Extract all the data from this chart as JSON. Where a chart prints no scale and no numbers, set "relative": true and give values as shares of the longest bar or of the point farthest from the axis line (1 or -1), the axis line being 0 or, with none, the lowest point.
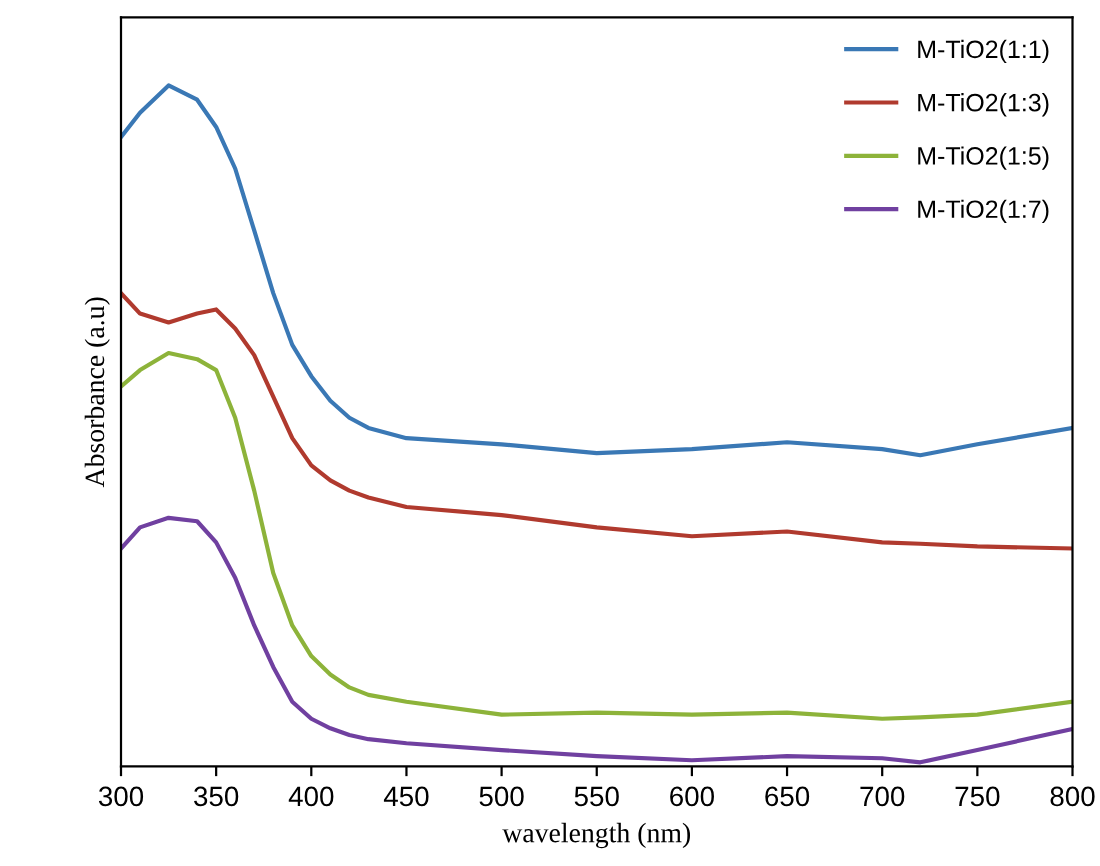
{
  "chart_data": {
    "type": "line",
    "xlabel": "wavelength (nm)",
    "ylabel": "Absorbance (a.u)",
    "relative": true,
    "legend": "top right",
    "grid": false,
    "marker": "none",
    "line_style": "solid",
    "x": [
      300,
      310,
      325,
      340,
      350,
      360,
      370,
      380,
      390,
      400,
      410,
      420,
      430,
      450,
      500,
      550,
      600,
      650,
      700,
      720,
      750,
      800
    ],
    "xlim": [
      300,
      800
    ],
    "xticks": [
      300,
      350,
      400,
      450,
      500,
      550,
      600,
      650,
      700,
      750,
      800
    ],
    "series": [
      {
        "name": "M-TiO2(1:1)",
        "color": "#3a78b5",
        "values": [
          0.924,
          0.96,
          1.0,
          0.979,
          0.939,
          0.878,
          0.787,
          0.695,
          0.619,
          0.573,
          0.537,
          0.512,
          0.497,
          0.482,
          0.473,
          0.46,
          0.466,
          0.476,
          0.466,
          0.457,
          0.473,
          0.497
        ]
      },
      {
        "name": "M-TiO2(1:3)",
        "color": "#b03a2e",
        "values": [
          0.695,
          0.665,
          0.652,
          0.665,
          0.671,
          0.643,
          0.604,
          0.543,
          0.482,
          0.442,
          0.42,
          0.405,
          0.395,
          0.381,
          0.369,
          0.351,
          0.338,
          0.345,
          0.329,
          0.327,
          0.323,
          0.32
        ]
      },
      {
        "name": "M-TiO2(1:5)",
        "color": "#8db33a",
        "values": [
          0.558,
          0.582,
          0.607,
          0.598,
          0.582,
          0.512,
          0.405,
          0.284,
          0.207,
          0.162,
          0.135,
          0.116,
          0.105,
          0.095,
          0.076,
          0.079,
          0.076,
          0.079,
          0.07,
          0.072,
          0.076,
          0.095
        ]
      },
      {
        "name": "M-TiO2(1:7)",
        "color": "#7040a0",
        "values": [
          0.32,
          0.351,
          0.365,
          0.36,
          0.329,
          0.277,
          0.207,
          0.146,
          0.095,
          0.07,
          0.056,
          0.046,
          0.04,
          0.034,
          0.024,
          0.015,
          0.009,
          0.015,
          0.012,
          0.006,
          0.024,
          0.055
        ]
      }
    ]
  }
}
